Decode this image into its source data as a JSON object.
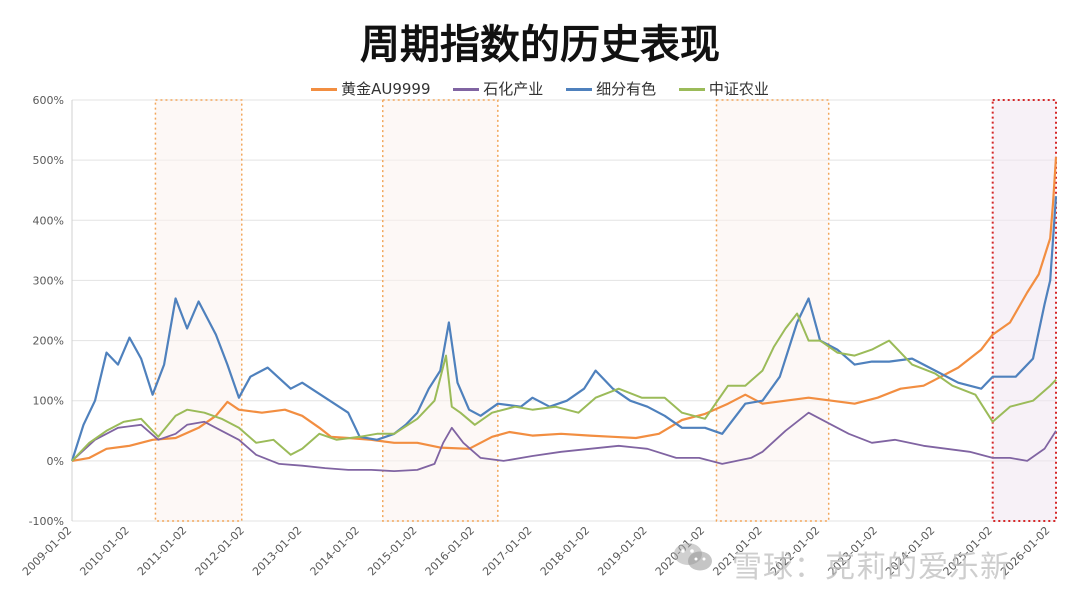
{
  "chart_data": {
    "type": "line",
    "title": "周期指数的历史表现",
    "xlabel": "",
    "ylabel": "",
    "ylim": [
      -1.0,
      6.0
    ],
    "y_ticks": [
      "-100%",
      "0%",
      "100%",
      "200%",
      "300%",
      "400%",
      "500%",
      "600%"
    ],
    "y_tick_values": [
      -1,
      0,
      1,
      2,
      3,
      4,
      5,
      6
    ],
    "x_ticks": [
      "2009-01-02",
      "2010-01-02",
      "2011-01-02",
      "2012-01-02",
      "2013-01-02",
      "2014-01-02",
      "2015-01-02",
      "2016-01-02",
      "2017-01-02",
      "2018-01-02",
      "2019-01-02",
      "2020-01-02",
      "2021-01-02",
      "2022-01-02",
      "2023-01-02",
      "2024-01-02",
      "2025-01-02",
      "2026-01-02"
    ],
    "x_range": [
      2009.0,
      2026.1
    ],
    "grid": true,
    "legend_position": "top",
    "highlight_periods": [
      {
        "start": 2010.45,
        "end": 2011.95,
        "style": "dotted-orange"
      },
      {
        "start": 2014.4,
        "end": 2016.4,
        "style": "dotted-orange"
      },
      {
        "start": 2020.2,
        "end": 2022.15,
        "style": "dotted-orange"
      },
      {
        "start": 2025.0,
        "end": 2026.4,
        "style": "dotted-red"
      }
    ],
    "series": [
      {
        "name": "黄金AU9999",
        "color": "#F28E41",
        "width": 2.2,
        "x": [
          2009.0,
          2009.3,
          2009.6,
          2010.0,
          2010.4,
          2010.8,
          2011.2,
          2011.5,
          2011.7,
          2011.9,
          2012.3,
          2012.7,
          2013.0,
          2013.3,
          2013.5,
          2013.8,
          2014.2,
          2014.6,
          2015.0,
          2015.4,
          2015.9,
          2016.3,
          2016.6,
          2017.0,
          2017.5,
          2018.0,
          2018.4,
          2018.8,
          2019.2,
          2019.6,
          2020.0,
          2020.4,
          2020.7,
          2021.0,
          2021.4,
          2021.8,
          2022.2,
          2022.6,
          2023.0,
          2023.4,
          2023.8,
          2024.0,
          2024.4,
          2024.8,
          2025.0,
          2025.3,
          2025.6,
          2025.8,
          2026.0,
          2026.05,
          2026.1
        ],
        "values": [
          0.0,
          0.05,
          0.2,
          0.25,
          0.35,
          0.38,
          0.55,
          0.75,
          0.98,
          0.85,
          0.8,
          0.85,
          0.75,
          0.55,
          0.4,
          0.38,
          0.35,
          0.3,
          0.3,
          0.22,
          0.2,
          0.4,
          0.48,
          0.42,
          0.45,
          0.42,
          0.4,
          0.38,
          0.45,
          0.68,
          0.78,
          0.95,
          1.1,
          0.95,
          1.0,
          1.05,
          1.0,
          0.95,
          1.05,
          1.2,
          1.25,
          1.35,
          1.55,
          1.85,
          2.1,
          2.3,
          2.8,
          3.1,
          3.7,
          4.3,
          5.05
        ]
      },
      {
        "name": "石化产业",
        "color": "#8064A2",
        "width": 1.8,
        "x": [
          2009.0,
          2009.4,
          2009.8,
          2010.2,
          2010.5,
          2010.8,
          2011.0,
          2011.3,
          2011.6,
          2011.9,
          2012.2,
          2012.6,
          2013.0,
          2013.4,
          2013.8,
          2014.2,
          2014.6,
          2015.0,
          2015.3,
          2015.45,
          2015.6,
          2015.8,
          2016.1,
          2016.5,
          2017.0,
          2017.5,
          2018.0,
          2018.5,
          2019.0,
          2019.5,
          2019.9,
          2020.3,
          2020.8,
          2021.0,
          2021.4,
          2021.8,
          2022.2,
          2022.5,
          2022.9,
          2023.3,
          2023.8,
          2024.2,
          2024.6,
          2025.0,
          2025.3,
          2025.6,
          2025.9,
          2026.1
        ],
        "values": [
          0.0,
          0.35,
          0.55,
          0.6,
          0.35,
          0.45,
          0.6,
          0.65,
          0.5,
          0.35,
          0.1,
          -0.05,
          -0.08,
          -0.12,
          -0.15,
          -0.15,
          -0.17,
          -0.15,
          -0.05,
          0.3,
          0.55,
          0.3,
          0.05,
          0.0,
          0.08,
          0.15,
          0.2,
          0.25,
          0.2,
          0.05,
          0.05,
          -0.05,
          0.05,
          0.15,
          0.5,
          0.8,
          0.6,
          0.45,
          0.3,
          0.35,
          0.25,
          0.2,
          0.15,
          0.05,
          0.05,
          0.0,
          0.2,
          0.5
        ]
      },
      {
        "name": "细分有色",
        "color": "#4F81BD",
        "width": 2.2,
        "x": [
          2009.0,
          2009.2,
          2009.4,
          2009.6,
          2009.8,
          2010.0,
          2010.2,
          2010.4,
          2010.6,
          2010.8,
          2011.0,
          2011.2,
          2011.5,
          2011.7,
          2011.9,
          2012.1,
          2012.4,
          2012.8,
          2013.0,
          2013.4,
          2013.8,
          2014.0,
          2014.3,
          2014.6,
          2014.8,
          2015.0,
          2015.2,
          2015.4,
          2015.55,
          2015.7,
          2015.9,
          2016.1,
          2016.4,
          2016.8,
          2017.0,
          2017.3,
          2017.6,
          2017.9,
          2018.1,
          2018.4,
          2018.7,
          2019.0,
          2019.3,
          2019.6,
          2020.0,
          2020.3,
          2020.7,
          2021.0,
          2021.3,
          2021.6,
          2021.8,
          2022.0,
          2022.3,
          2022.6,
          2022.9,
          2023.2,
          2023.6,
          2024.0,
          2024.4,
          2024.8,
          2025.0,
          2025.4,
          2025.7,
          2025.9,
          2026.0,
          2026.1
        ],
        "values": [
          0.0,
          0.6,
          1.0,
          1.8,
          1.6,
          2.05,
          1.7,
          1.1,
          1.6,
          2.7,
          2.2,
          2.65,
          2.1,
          1.6,
          1.05,
          1.4,
          1.55,
          1.2,
          1.3,
          1.05,
          0.8,
          0.4,
          0.35,
          0.45,
          0.6,
          0.8,
          1.2,
          1.5,
          2.3,
          1.3,
          0.85,
          0.75,
          0.95,
          0.9,
          1.05,
          0.9,
          1.0,
          1.2,
          1.5,
          1.2,
          1.0,
          0.9,
          0.75,
          0.55,
          0.55,
          0.45,
          0.95,
          1.0,
          1.4,
          2.3,
          2.7,
          2.0,
          1.85,
          1.6,
          1.65,
          1.65,
          1.7,
          1.5,
          1.3,
          1.2,
          1.4,
          1.4,
          1.7,
          2.6,
          3.0,
          4.4
        ]
      },
      {
        "name": "中证农业",
        "color": "#9BBB59",
        "width": 2.0,
        "x": [
          2009.0,
          2009.3,
          2009.6,
          2009.9,
          2010.2,
          2010.5,
          2010.8,
          2011.0,
          2011.3,
          2011.6,
          2011.9,
          2012.2,
          2012.5,
          2012.8,
          2013.0,
          2013.3,
          2013.6,
          2014.0,
          2014.3,
          2014.6,
          2015.0,
          2015.3,
          2015.5,
          2015.6,
          2015.75,
          2016.0,
          2016.3,
          2016.7,
          2017.0,
          2017.4,
          2017.8,
          2018.1,
          2018.5,
          2018.9,
          2019.3,
          2019.6,
          2020.0,
          2020.4,
          2020.7,
          2021.0,
          2021.2,
          2021.4,
          2021.6,
          2021.8,
          2022.0,
          2022.3,
          2022.6,
          2022.9,
          2023.2,
          2023.6,
          2024.0,
          2024.3,
          2024.7,
          2025.0,
          2025.3,
          2025.7,
          2026.0,
          2026.1
        ],
        "values": [
          0.0,
          0.3,
          0.5,
          0.65,
          0.7,
          0.4,
          0.75,
          0.85,
          0.8,
          0.7,
          0.55,
          0.3,
          0.35,
          0.1,
          0.2,
          0.45,
          0.35,
          0.4,
          0.45,
          0.45,
          0.7,
          1.0,
          1.75,
          0.9,
          0.8,
          0.6,
          0.8,
          0.9,
          0.85,
          0.9,
          0.8,
          1.05,
          1.2,
          1.05,
          1.05,
          0.8,
          0.7,
          1.25,
          1.25,
          1.5,
          1.9,
          2.2,
          2.45,
          2.0,
          2.0,
          1.8,
          1.75,
          1.85,
          2.0,
          1.6,
          1.45,
          1.25,
          1.1,
          0.65,
          0.9,
          1.0,
          1.25,
          1.35
        ]
      }
    ]
  },
  "watermark": "雪球：克莉的爱乐新"
}
